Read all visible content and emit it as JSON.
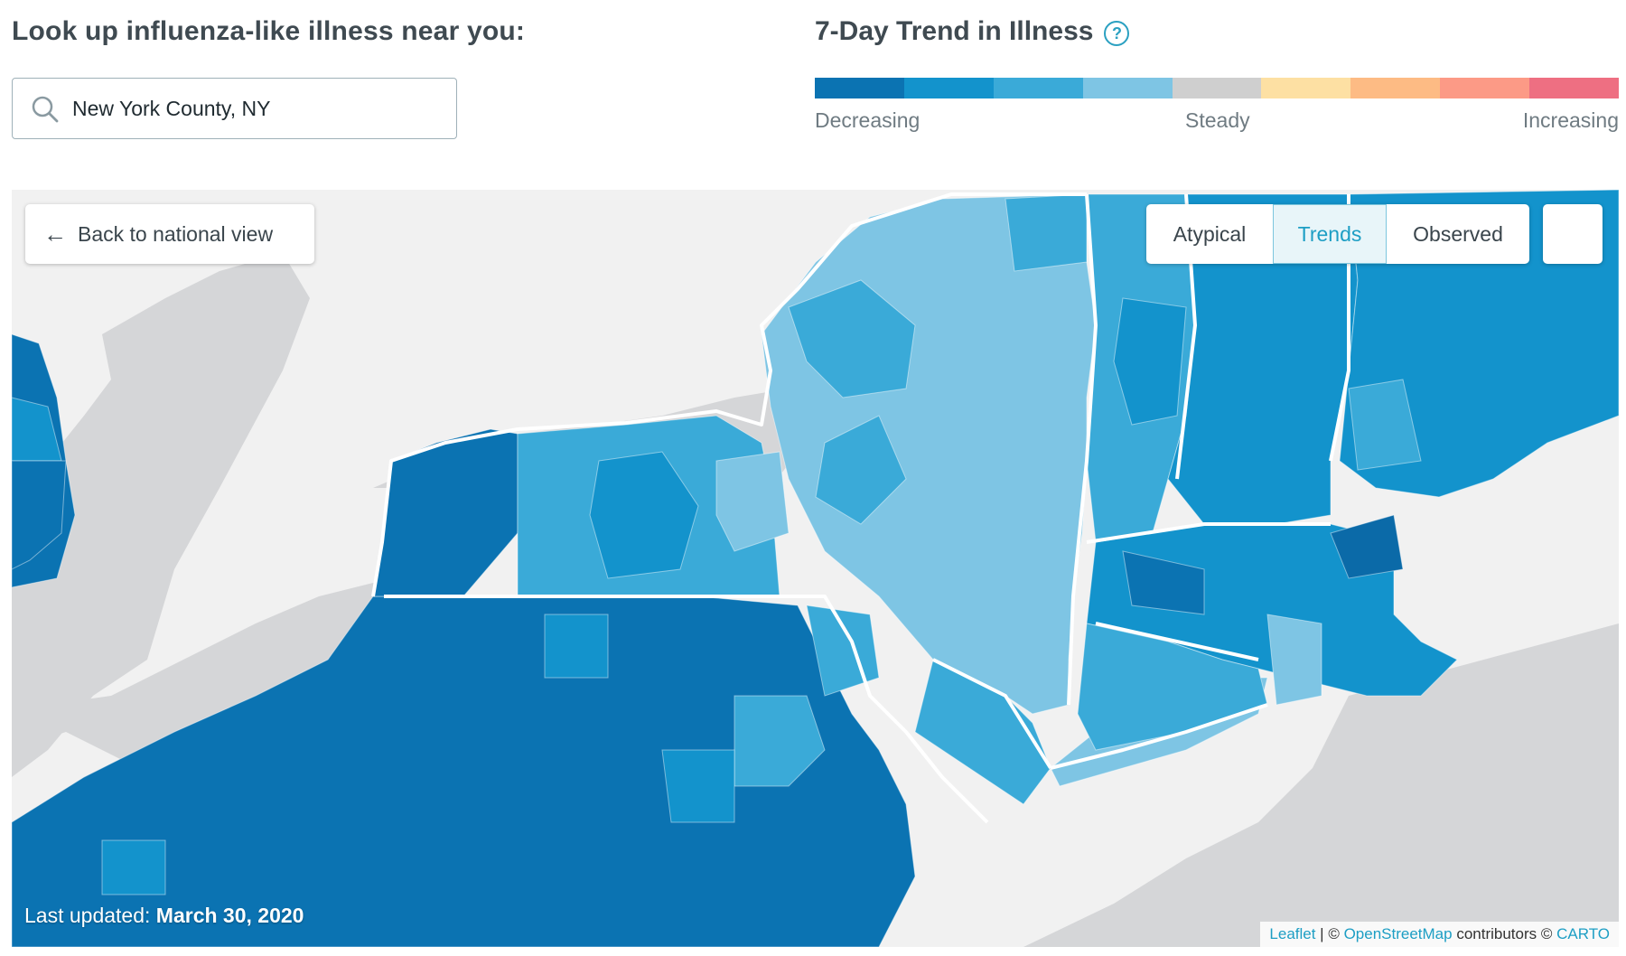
{
  "lookup": {
    "title": "Look up influenza-like illness near you:",
    "search_value": "New York County, NY",
    "search_icon": "search-icon"
  },
  "trend": {
    "title": "7-Day Trend in Illness",
    "help_icon": "help-icon",
    "scale_colors": [
      "#0b73b2",
      "#1393cc",
      "#3aaad8",
      "#7ec5e4",
      "#cfcfcf",
      "#fde0a3",
      "#fdbb84",
      "#fc9a86",
      "#ee6f82"
    ],
    "labels": {
      "left": "Decreasing",
      "middle": "Steady",
      "right": "Increasing"
    }
  },
  "map": {
    "back_button": "Back to national view",
    "view_options": [
      {
        "label": "Atypical",
        "active": false
      },
      {
        "label": "Trends",
        "active": true
      },
      {
        "label": "Observed",
        "active": false
      }
    ],
    "locate_icon": "crosshair-icon",
    "last_updated_label": "Last updated:",
    "last_updated_date": "March 30, 2020",
    "attribution": {
      "leaflet": "Leaflet",
      "sep": " | © ",
      "osm": "OpenStreetMap",
      "contrib": " contributors © ",
      "carto": "CARTO"
    },
    "colors": {
      "land": "#f1f1f1",
      "water": "#d5d6d8",
      "very_dark": "#0b6aa8",
      "dark": "#0b73b2",
      "medium": "#1393cc",
      "light": "#3aaad8",
      "lighter": "#7ec5e4",
      "state_border": "#ffffff"
    }
  }
}
